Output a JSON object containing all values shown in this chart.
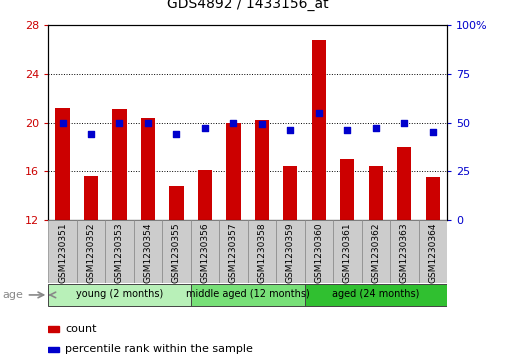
{
  "title": "GDS4892 / 1433156_at",
  "samples": [
    "GSM1230351",
    "GSM1230352",
    "GSM1230353",
    "GSM1230354",
    "GSM1230355",
    "GSM1230356",
    "GSM1230357",
    "GSM1230358",
    "GSM1230359",
    "GSM1230360",
    "GSM1230361",
    "GSM1230362",
    "GSM1230363",
    "GSM1230364"
  ],
  "counts": [
    21.2,
    15.6,
    21.1,
    20.4,
    14.8,
    16.1,
    20.0,
    20.2,
    16.4,
    26.8,
    17.0,
    16.4,
    18.0,
    15.5
  ],
  "percentiles": [
    50,
    44,
    50,
    50,
    44,
    47,
    50,
    49,
    46,
    55,
    46,
    47,
    50,
    45
  ],
  "ymin": 12,
  "ymax": 28,
  "yticks": [
    12,
    16,
    20,
    24,
    28
  ],
  "right_yticks": [
    0,
    25,
    50,
    75,
    100
  ],
  "bar_color": "#cc0000",
  "dot_color": "#0000cc",
  "groups": [
    {
      "label": "young (2 months)",
      "start": 0,
      "end": 4,
      "color": "#b8f0b8"
    },
    {
      "label": "middle aged (12 months)",
      "start": 5,
      "end": 8,
      "color": "#78e078"
    },
    {
      "label": "aged (24 months)",
      "start": 9,
      "end": 13,
      "color": "#30c030"
    }
  ],
  "legend_count_label": "count",
  "legend_pct_label": "percentile rank within the sample",
  "age_label": "age",
  "bar_width": 0.5,
  "title_fontsize": 10,
  "axis_fontsize": 8,
  "sample_box_color": "#cccccc",
  "grid_color": "black",
  "grid_linestyle": "dotted",
  "grid_linewidth": 0.7
}
